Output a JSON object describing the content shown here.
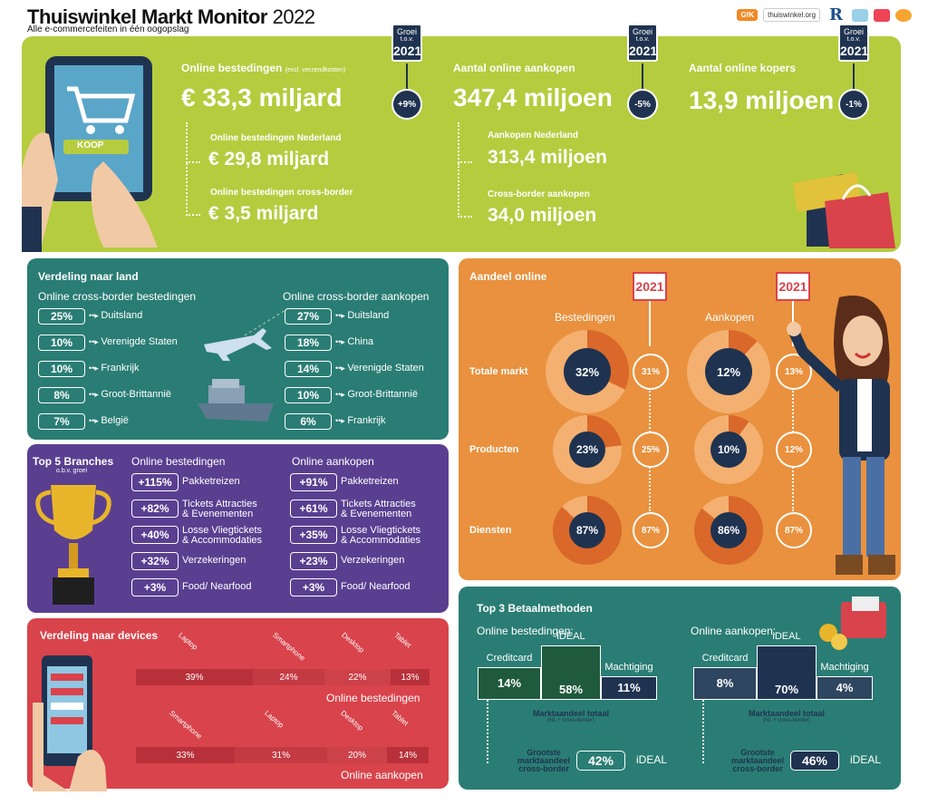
{
  "header": {
    "title_main": "Thuiswinkel Markt Monitor",
    "title_year": "2022",
    "subtitle": "Alle e-commercefeiten in één oogopslag",
    "logos": [
      "GfK",
      "thuiswinkel.org",
      "R"
    ]
  },
  "top": {
    "tag": {
      "groei": "Groei",
      "tov": "t.o.v.",
      "year": "2021"
    },
    "cart_button": "KOOP",
    "spend": {
      "label": "Online bestedingen",
      "label_note": "(excl. verzendkosten)",
      "value": "€ 33,3 miljard",
      "growth": "+9%",
      "nl_label": "Online bestedingen Nederland",
      "nl_value": "€ 29,8 miljard",
      "cb_label": "Online bestedingen cross-border",
      "cb_value": "€ 3,5 miljard"
    },
    "purchases": {
      "label": "Aantal online aankopen",
      "value": "347,4 miljoen",
      "growth": "-5%",
      "nl_label": "Aankopen Nederland",
      "nl_value": "313,4 miljoen",
      "cb_label": "Cross-border aankopen",
      "cb_value": "34,0 miljoen"
    },
    "buyers": {
      "label": "Aantal online kopers",
      "value": "13,9 miljoen",
      "growth": "-1%"
    }
  },
  "land": {
    "title": "Verdeling naar land",
    "left_title": "Online cross-border bestedingen",
    "right_title": "Online cross-border aankopen",
    "left": [
      {
        "pct": "25%",
        "label": "Duitsland"
      },
      {
        "pct": "10%",
        "label": "Verenigde Staten"
      },
      {
        "pct": "10%",
        "label": "Frankrijk"
      },
      {
        "pct": "8%",
        "label": "Groot-Brittannië"
      },
      {
        "pct": "7%",
        "label": "België"
      }
    ],
    "right": [
      {
        "pct": "27%",
        "label": "Duitsland"
      },
      {
        "pct": "18%",
        "label": "China"
      },
      {
        "pct": "14%",
        "label": "Verenigde Staten"
      },
      {
        "pct": "10%",
        "label": "Groot-Brittannië"
      },
      {
        "pct": "6%",
        "label": "Frankrijk"
      }
    ]
  },
  "branches": {
    "title": "Top 5 Branches",
    "subtitle": "o.b.v. groei",
    "left_title": "Online bestedingen",
    "right_title": "Online aankopen",
    "left": [
      {
        "pct": "+115%",
        "l1": "Pakketreizen",
        "l2": ""
      },
      {
        "pct": "+82%",
        "l1": "Tickets Attracties",
        "l2": "& Evenementen"
      },
      {
        "pct": "+40%",
        "l1": "Losse Vliegtickets",
        "l2": "& Accommodaties"
      },
      {
        "pct": "+32%",
        "l1": "Verzekeringen",
        "l2": ""
      },
      {
        "pct": "+3%",
        "l1": "Food/ Nearfood",
        "l2": ""
      }
    ],
    "right": [
      {
        "pct": "+91%",
        "l1": "Pakketreizen",
        "l2": ""
      },
      {
        "pct": "+61%",
        "l1": "Tickets Attracties",
        "l2": "& Evenementen"
      },
      {
        "pct": "+35%",
        "l1": "Losse Vliegtickets",
        "l2": "& Accommodaties"
      },
      {
        "pct": "+23%",
        "l1": "Verzekeringen",
        "l2": ""
      },
      {
        "pct": "+3%",
        "l1": "Food/ Nearfood",
        "l2": ""
      }
    ]
  },
  "devices": {
    "title": "Verdeling naar devices",
    "spend_caption": "Online bestedingen",
    "purchase_caption": "Online aankopen",
    "spend": [
      {
        "label": "Laptop",
        "value": 39,
        "text": "39%",
        "color": "#b8313a"
      },
      {
        "label": "Smartphone",
        "value": 24,
        "text": "24%",
        "color": "#c43a42"
      },
      {
        "label": "Desktop",
        "value": 22,
        "text": "22%",
        "color": "#cd4149"
      },
      {
        "label": "Tablet",
        "value": 13,
        "text": "13%",
        "color": "#b8313a"
      }
    ],
    "purchase": [
      {
        "label": "Smartphone",
        "value": 33,
        "text": "33%",
        "color": "#b8313a"
      },
      {
        "label": "Laptop",
        "value": 31,
        "text": "31%",
        "color": "#c43a42"
      },
      {
        "label": "Desktop",
        "value": 20,
        "text": "20%",
        "color": "#cd4149"
      },
      {
        "label": "Tablet",
        "value": 14,
        "text": "14%",
        "color": "#b8313a"
      }
    ]
  },
  "share": {
    "title": "Aandeel online",
    "year_tag": "2021",
    "col_spend": "Bestedingen",
    "col_purchase": "Aankopen",
    "rows": [
      {
        "label": "Totale markt",
        "spend": "32%",
        "spend_val": 32,
        "spend_prev": "31%",
        "purchase": "12%",
        "purchase_val": 12,
        "purchase_prev": "13%"
      },
      {
        "label": "Producten",
        "spend": "23%",
        "spend_val": 23,
        "spend_prev": "25%",
        "purchase": "10%",
        "purchase_val": 10,
        "purchase_prev": "12%"
      },
      {
        "label": "Diensten",
        "spend": "87%",
        "spend_val": 87,
        "spend_prev": "87%",
        "purchase": "86%",
        "purchase_val": 86,
        "purchase_prev": "87%"
      }
    ]
  },
  "payments": {
    "title": "Top 3 Betaalmethoden",
    "left_title": "Online bestedingen:",
    "right_title": "Online aankopen:",
    "left": [
      {
        "label": "Creditcard",
        "value": "14%"
      },
      {
        "label": "iDEAL",
        "value": "58%"
      },
      {
        "label": "Machtiging",
        "value": "11%"
      }
    ],
    "right": [
      {
        "label": "Creditcard",
        "value": "8%"
      },
      {
        "label": "iDEAL",
        "value": "70%"
      },
      {
        "label": "Machtiging",
        "value": "4%"
      }
    ],
    "market_total": "Marktaandeel totaal",
    "market_note": "(NL + cross-border)",
    "largest_l1": "Grootste",
    "largest_l2": "marktaandeel",
    "largest_l3": "cross-border",
    "left_largest": "42%",
    "right_largest": "46%",
    "largest_method": "iDEAL"
  },
  "colors": {
    "green": "#b5cc3f",
    "teal": "#2a7d74",
    "purple": "#5a3f91",
    "red": "#d9434b",
    "orange": "#e9913e",
    "navy": "#1f3350"
  }
}
